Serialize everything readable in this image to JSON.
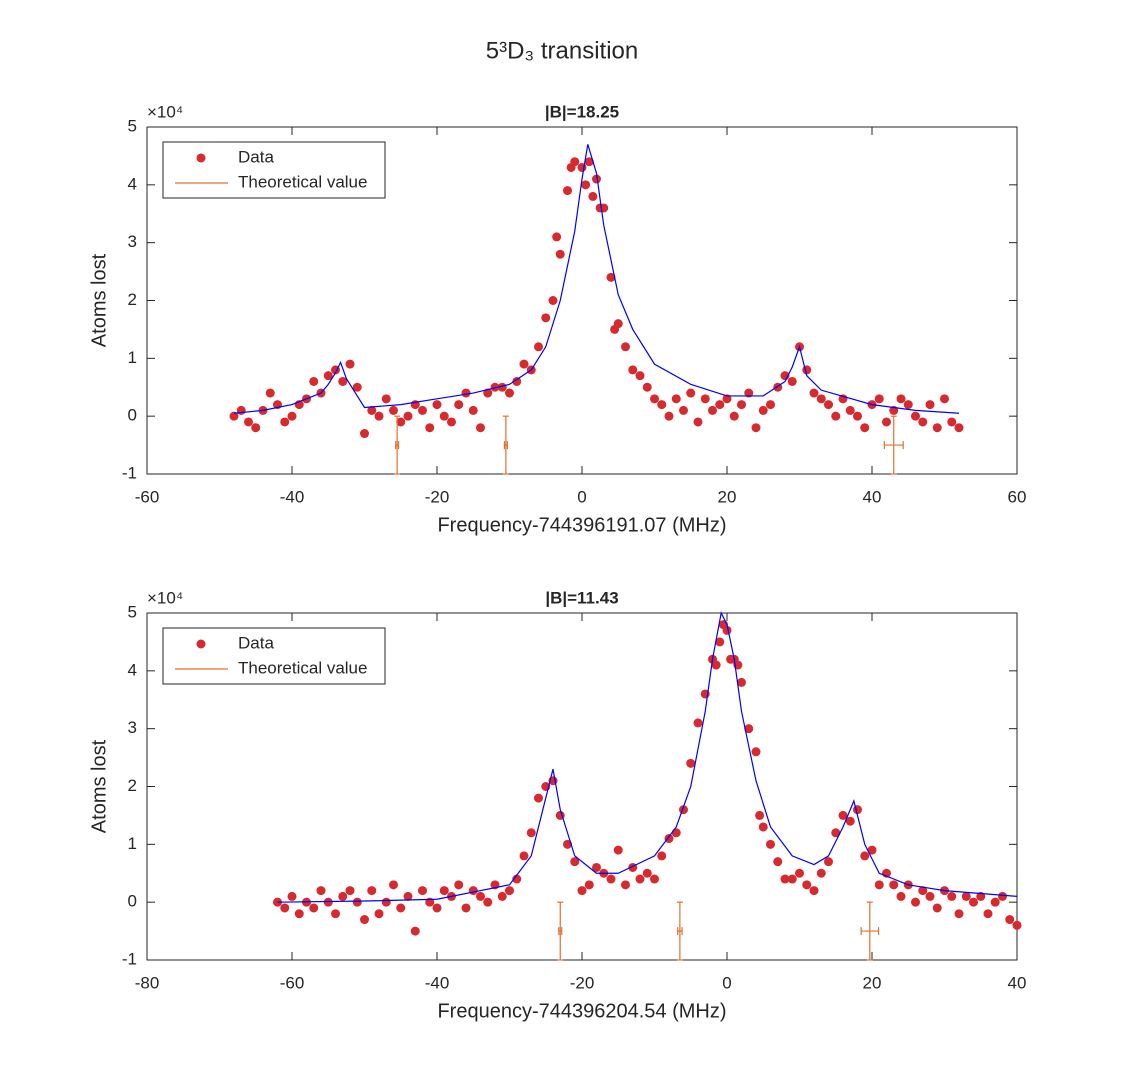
{
  "title": "5³D₃ transition",
  "chart_data": [
    {
      "type": "scatter",
      "title": "|B|=18.25",
      "xlabel": "Frequency-744396191.07 (MHz)",
      "ylabel": "Atoms lost",
      "y_multiplier": "×10⁴",
      "xlim": [
        -60,
        60
      ],
      "ylim": [
        -1,
        5
      ],
      "xticks": [
        -60,
        -40,
        -20,
        0,
        20,
        40,
        60
      ],
      "yticks": [
        -1,
        0,
        1,
        2,
        3,
        4,
        5
      ],
      "legend": "northwest",
      "series": [
        {
          "name": "Data",
          "style": "markers",
          "color": "#d62a2f",
          "x": [
            -48,
            -47,
            -46,
            -45,
            -44,
            -43,
            -42,
            -41,
            -40,
            -39,
            -38,
            -37,
            -36,
            -35,
            -34,
            -33,
            -32,
            -31,
            -30,
            -29,
            -28,
            -27,
            -26,
            -25,
            -24,
            -23,
            -22,
            -21,
            -20,
            -19,
            -18,
            -17,
            -16,
            -15,
            -14,
            -13,
            -12,
            -11,
            -10,
            -9,
            -8,
            -7,
            -6,
            -5,
            -4,
            -3.5,
            -3,
            -2,
            -1.5,
            -1,
            0,
            0.5,
            1,
            1.5,
            2,
            2.5,
            3,
            4,
            4.5,
            5,
            6,
            7,
            8,
            9,
            10,
            11,
            12,
            13,
            14,
            15,
            16,
            17,
            18,
            19,
            20,
            21,
            22,
            23,
            24,
            25,
            26,
            27,
            28,
            29,
            30,
            31,
            32,
            33,
            34,
            35,
            36,
            37,
            38,
            39,
            40,
            41,
            42,
            43,
            44,
            45,
            46,
            47,
            48,
            49,
            50,
            51,
            52
          ],
          "values": [
            0.0,
            0.1,
            -0.1,
            -0.2,
            0.1,
            0.4,
            0.2,
            -0.1,
            0.0,
            0.2,
            0.3,
            0.6,
            0.4,
            0.7,
            0.8,
            0.6,
            0.9,
            0.5,
            -0.3,
            0.1,
            0.0,
            0.3,
            0.1,
            -0.1,
            0.0,
            0.2,
            0.1,
            -0.2,
            0.2,
            0.0,
            -0.1,
            0.2,
            0.4,
            0.1,
            -0.2,
            0.4,
            0.5,
            0.5,
            0.4,
            0.6,
            0.9,
            0.8,
            1.2,
            1.7,
            2.0,
            3.1,
            2.8,
            3.9,
            4.3,
            4.4,
            4.3,
            4.0,
            4.4,
            3.8,
            4.1,
            3.6,
            3.6,
            2.4,
            1.5,
            1.6,
            1.2,
            0.8,
            0.7,
            0.5,
            0.3,
            0.2,
            0.0,
            0.3,
            0.1,
            0.4,
            -0.1,
            0.3,
            0.1,
            0.2,
            0.3,
            0.0,
            0.2,
            0.4,
            -0.2,
            0.1,
            0.2,
            0.5,
            0.7,
            0.6,
            1.2,
            0.8,
            0.4,
            0.3,
            0.2,
            0.0,
            0.3,
            0.1,
            0.0,
            -0.2,
            0.2,
            0.3,
            -0.1,
            0.1,
            0.3,
            0.2,
            0.0,
            -0.1,
            0.2,
            -0.2,
            0.3,
            -0.1,
            -0.2
          ]
        },
        {
          "style": "line",
          "color": "#0000ff",
          "x": [
            -48,
            -44,
            -40,
            -38,
            -36,
            -35,
            -34,
            -33.3,
            -32.5,
            -31.5,
            -30,
            -25,
            -20,
            -15,
            -10,
            -7,
            -5,
            -3,
            -1,
            0,
            0.8,
            2,
            3,
            5,
            7,
            10,
            15,
            20,
            25,
            28,
            29,
            30,
            31,
            33,
            40,
            46,
            52
          ],
          "values": [
            0.05,
            0.1,
            0.2,
            0.3,
            0.4,
            0.55,
            0.75,
            0.93,
            0.65,
            0.45,
            0.15,
            0.2,
            0.3,
            0.4,
            0.55,
            0.8,
            1.2,
            2.0,
            3.2,
            4.1,
            4.7,
            4.2,
            3.3,
            2.1,
            1.5,
            0.9,
            0.55,
            0.35,
            0.35,
            0.6,
            0.85,
            1.2,
            0.7,
            0.45,
            0.2,
            0.1,
            0.05
          ]
        },
        {
          "name": "Theoretical value",
          "style": "errorbar",
          "color": "#e2702e",
          "x": [
            -25.5,
            -10.5,
            43
          ],
          "xerr": [
            0.2,
            0.2,
            1.3
          ],
          "values": [
            -0.5,
            -0.5,
            -0.5
          ],
          "yerr": [
            0.5,
            0.5,
            0.5
          ]
        }
      ]
    },
    {
      "type": "scatter",
      "title": "|B|=11.43",
      "xlabel": "Frequency-744396204.54 (MHz)",
      "ylabel": "Atoms lost",
      "y_multiplier": "×10⁴",
      "xlim": [
        -80,
        40
      ],
      "ylim": [
        -1,
        5
      ],
      "xticks": [
        -80,
        -60,
        -40,
        -20,
        0,
        20,
        40
      ],
      "yticks": [
        -1,
        0,
        1,
        2,
        3,
        4,
        5
      ],
      "legend": "northwest",
      "series": [
        {
          "name": "Data",
          "style": "markers",
          "color": "#d62a2f",
          "x": [
            -62,
            -61,
            -60,
            -59,
            -58,
            -57,
            -56,
            -55,
            -54,
            -53,
            -52,
            -51,
            -50,
            -49,
            -48,
            -47,
            -46,
            -45,
            -44,
            -43,
            -42,
            -41,
            -40,
            -39,
            -38,
            -37,
            -36,
            -35,
            -34,
            -33,
            -32,
            -31,
            -30,
            -29,
            -28,
            -27,
            -26,
            -25,
            -24,
            -23,
            -22,
            -21,
            -20,
            -19,
            -18,
            -17,
            -16,
            -15,
            -14,
            -13,
            -12,
            -11,
            -10,
            -9,
            -8,
            -7,
            -6,
            -5,
            -4,
            -3,
            -2,
            -1.5,
            -1,
            -0.5,
            0,
            0.5,
            1,
            1.5,
            2,
            3,
            4,
            4.5,
            5,
            6,
            7,
            8,
            9,
            10,
            11,
            12,
            13,
            14,
            15,
            16,
            17,
            18,
            19,
            20,
            21,
            22,
            23,
            24,
            25,
            26,
            27,
            28,
            29,
            30,
            31,
            32,
            33,
            34,
            35,
            36,
            37,
            38,
            39,
            40
          ],
          "values": [
            0.0,
            -0.1,
            0.1,
            -0.2,
            0.0,
            -0.1,
            0.2,
            0.0,
            -0.2,
            0.1,
            0.2,
            0.0,
            -0.3,
            0.2,
            -0.2,
            0.0,
            0.3,
            -0.1,
            0.1,
            -0.5,
            0.2,
            0.0,
            -0.1,
            0.2,
            0.1,
            0.3,
            -0.1,
            0.2,
            0.1,
            0.0,
            0.3,
            0.1,
            0.2,
            0.4,
            0.8,
            1.2,
            1.8,
            2.0,
            2.1,
            1.5,
            1.0,
            0.7,
            0.2,
            0.3,
            0.6,
            0.5,
            0.4,
            0.9,
            0.3,
            0.6,
            0.4,
            0.5,
            0.4,
            0.8,
            1.1,
            1.2,
            1.6,
            2.4,
            3.1,
            3.6,
            4.2,
            4.1,
            4.5,
            4.8,
            4.7,
            4.2,
            4.2,
            4.1,
            3.8,
            3.0,
            2.6,
            1.5,
            1.3,
            1.0,
            0.7,
            0.4,
            0.4,
            0.5,
            0.3,
            0.2,
            0.5,
            0.7,
            1.2,
            1.5,
            1.4,
            1.6,
            0.8,
            0.9,
            0.3,
            0.5,
            0.3,
            0.1,
            0.3,
            0.0,
            0.2,
            0.1,
            -0.1,
            0.2,
            0.1,
            -0.2,
            0.1,
            0.0,
            0.1,
            -0.2,
            0.0,
            0.1,
            -0.3,
            -0.4
          ]
        },
        {
          "style": "line",
          "color": "#0000ff",
          "x": [
            -62,
            -50,
            -40,
            -30,
            -27,
            -25,
            -24,
            -23,
            -21,
            -18,
            -15,
            -10,
            -7,
            -5,
            -3,
            -2,
            -0.8,
            0,
            1,
            2,
            4,
            6,
            9,
            12,
            14,
            16,
            17.5,
            19,
            21,
            25,
            30,
            40
          ],
          "values": [
            0.0,
            0.02,
            0.05,
            0.3,
            0.8,
            1.8,
            2.3,
            1.6,
            0.8,
            0.5,
            0.5,
            0.8,
            1.3,
            2.0,
            3.3,
            4.2,
            5.0,
            4.8,
            4.2,
            3.3,
            2.1,
            1.3,
            0.8,
            0.65,
            0.8,
            1.3,
            1.75,
            1.0,
            0.5,
            0.3,
            0.2,
            0.1
          ]
        },
        {
          "name": "Theoretical value",
          "style": "errorbar",
          "color": "#e2702e",
          "x": [
            -23,
            -6.5,
            19.7
          ],
          "xerr": [
            0.2,
            0.3,
            1.2
          ],
          "values": [
            -0.5,
            -0.5,
            -0.5
          ],
          "yerr": [
            0.5,
            0.5,
            0.5
          ]
        }
      ]
    }
  ]
}
